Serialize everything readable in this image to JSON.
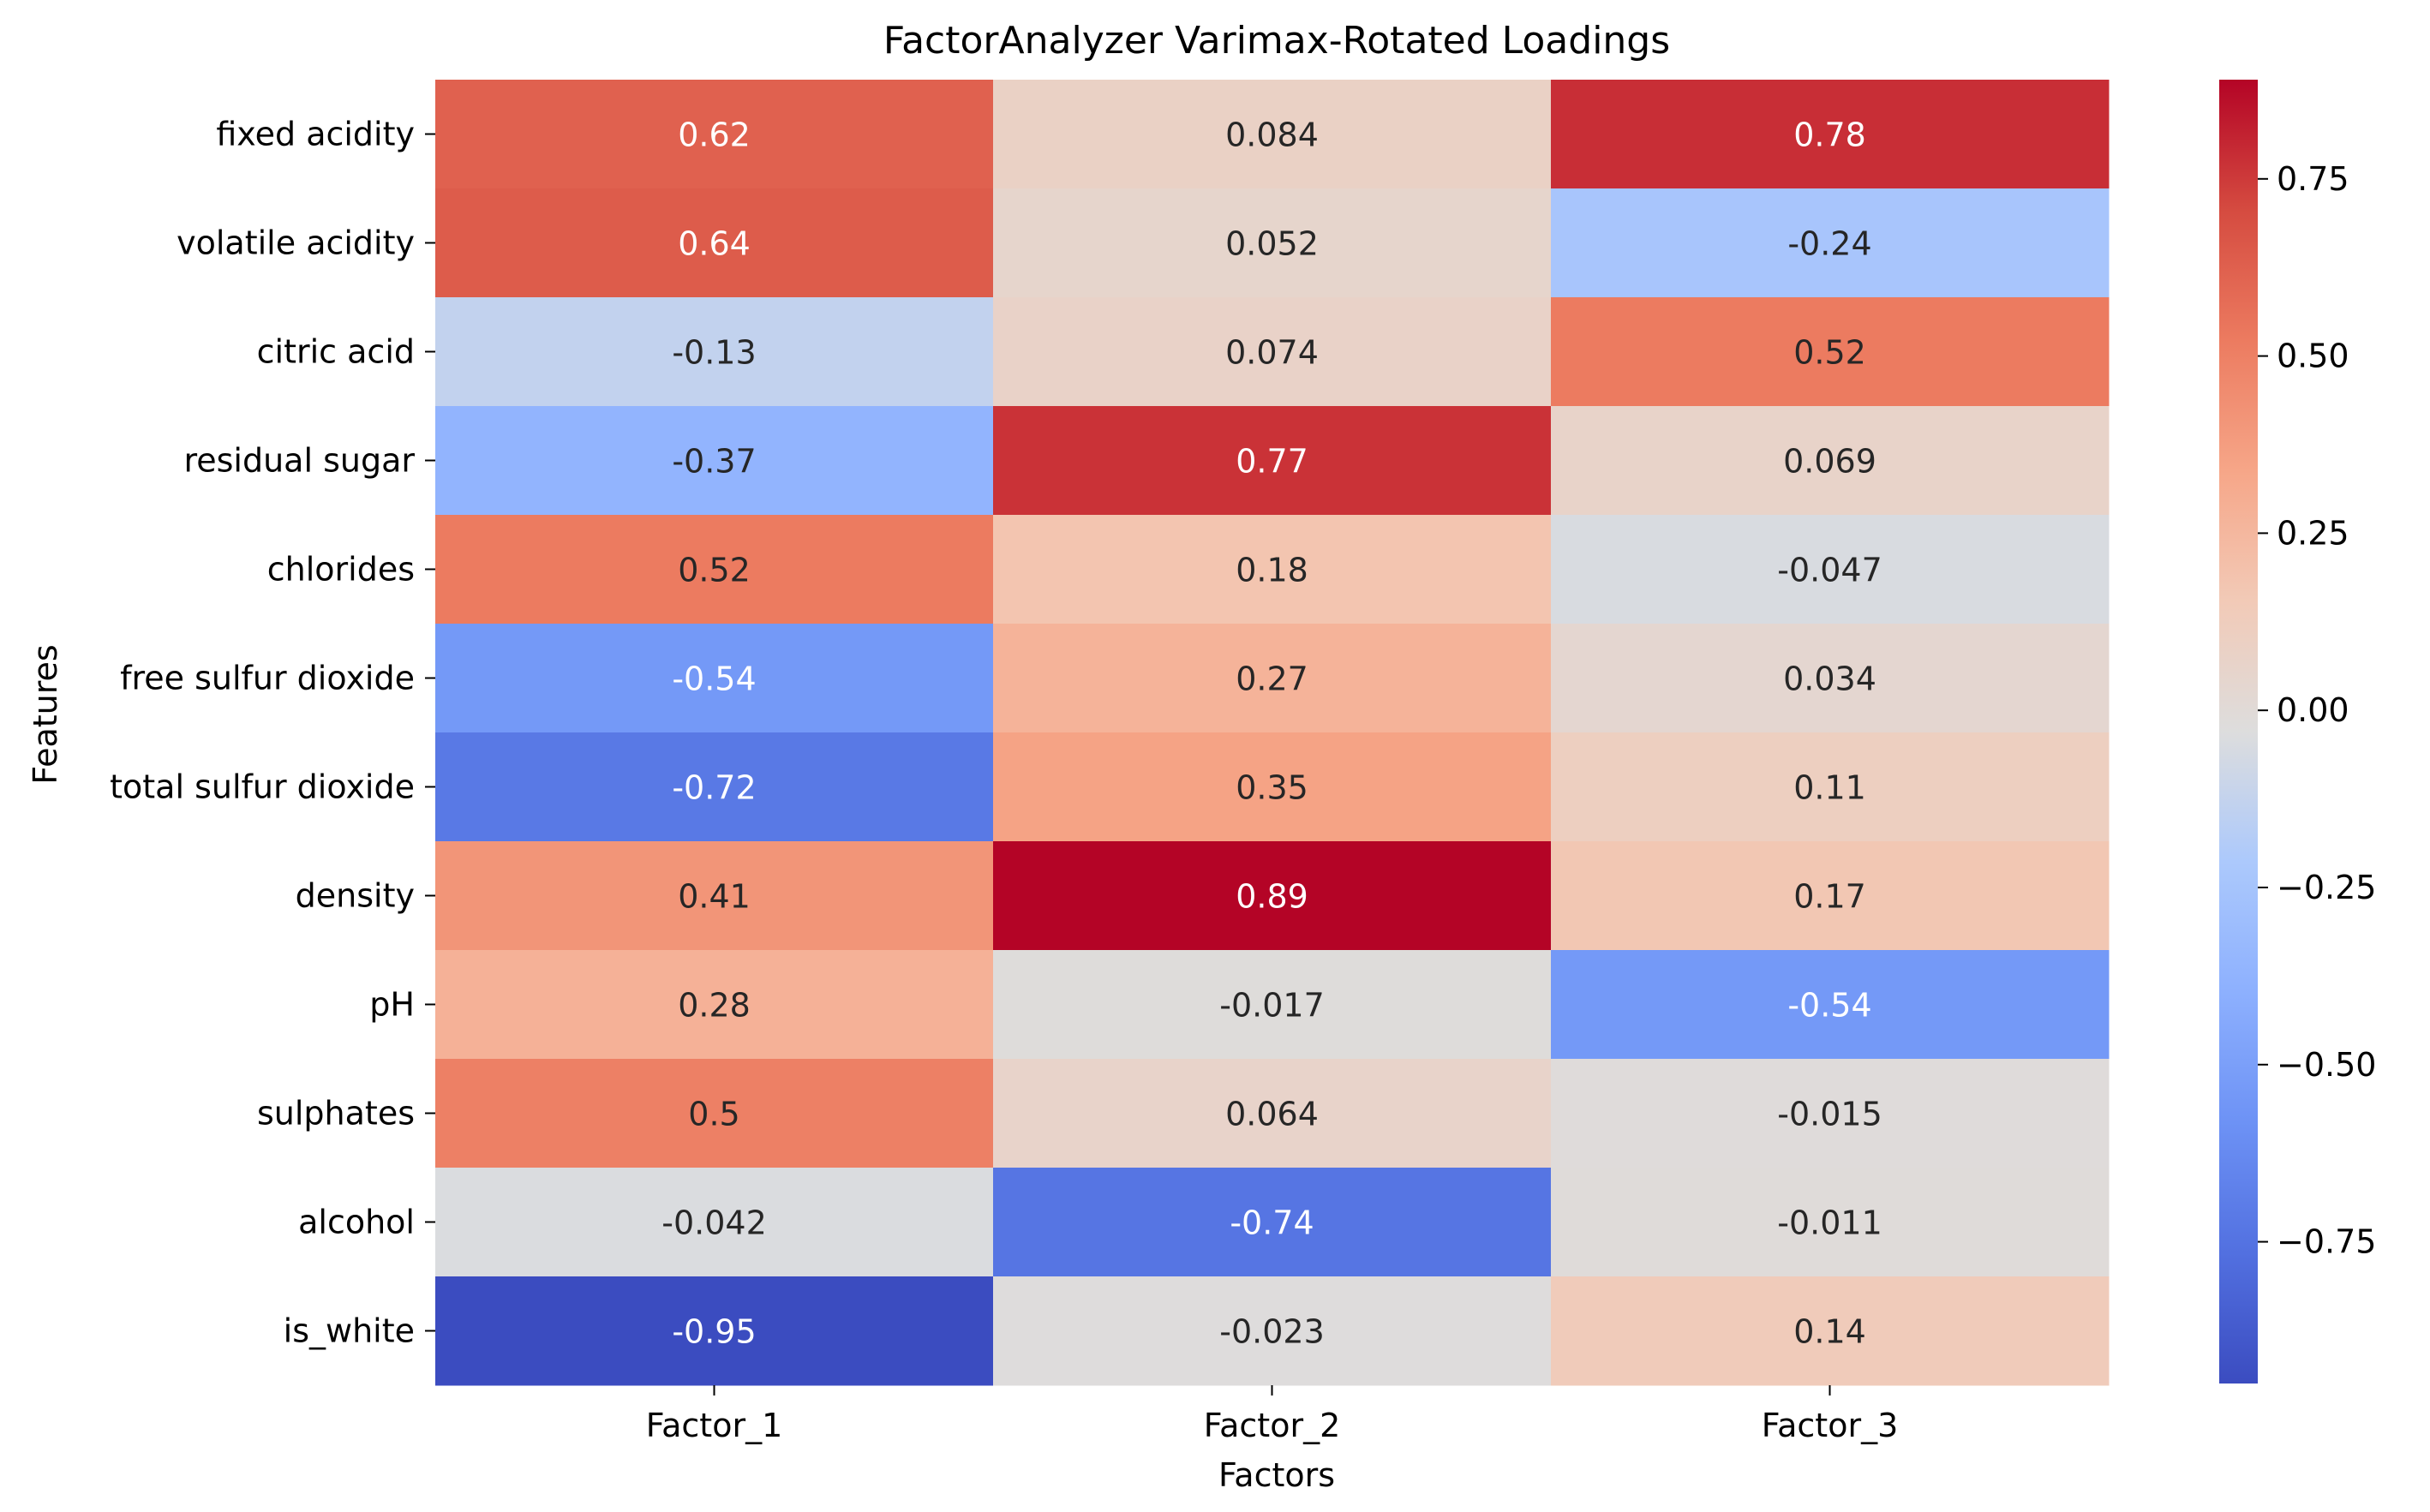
{
  "chart_data": {
    "type": "heatmap",
    "title": "FactorAnalyzer Varimax-Rotated Loadings",
    "xlabel": "Factors",
    "ylabel": "Features",
    "columns": [
      "Factor_1",
      "Factor_2",
      "Factor_3"
    ],
    "rows": [
      "fixed acidity",
      "volatile acidity",
      "citric acid",
      "residual sugar",
      "chlorides",
      "free sulfur dioxide",
      "total sulfur dioxide",
      "density",
      "pH",
      "sulphates",
      "alcohol",
      "is_white"
    ],
    "values": [
      [
        0.62,
        0.084,
        0.78
      ],
      [
        0.64,
        0.052,
        -0.24
      ],
      [
        -0.13,
        0.074,
        0.52
      ],
      [
        -0.37,
        0.77,
        0.069
      ],
      [
        0.52,
        0.18,
        -0.047
      ],
      [
        -0.54,
        0.27,
        0.034
      ],
      [
        -0.72,
        0.35,
        0.11
      ],
      [
        0.41,
        0.89,
        0.17
      ],
      [
        0.28,
        -0.017,
        -0.54
      ],
      [
        0.5,
        0.064,
        -0.015
      ],
      [
        -0.042,
        -0.74,
        -0.011
      ],
      [
        -0.95,
        -0.023,
        0.14
      ]
    ],
    "value_labels": [
      [
        "0.62",
        "0.084",
        "0.78"
      ],
      [
        "0.64",
        "0.052",
        "-0.24"
      ],
      [
        "-0.13",
        "0.074",
        "0.52"
      ],
      [
        "-0.37",
        "0.77",
        "0.069"
      ],
      [
        "0.52",
        "0.18",
        "-0.047"
      ],
      [
        "-0.54",
        "0.27",
        "0.034"
      ],
      [
        "-0.72",
        "0.35",
        "0.11"
      ],
      [
        "0.41",
        "0.89",
        "0.17"
      ],
      [
        "0.28",
        "-0.017",
        "-0.54"
      ],
      [
        "0.5",
        "0.064",
        "-0.015"
      ],
      [
        "-0.042",
        "-0.74",
        "-0.011"
      ],
      [
        "-0.95",
        "-0.023",
        "0.14"
      ]
    ],
    "colormap": "coolwarm",
    "colorbar": {
      "range": [
        -0.95,
        0.89
      ],
      "ticks": [
        -0.75,
        -0.5,
        -0.25,
        0.0,
        0.25,
        0.5,
        0.75
      ],
      "tick_labels": [
        "−0.75",
        "−0.50",
        "−0.25",
        "0.00",
        "0.25",
        "0.50",
        "0.75"
      ]
    },
    "grid": false
  }
}
